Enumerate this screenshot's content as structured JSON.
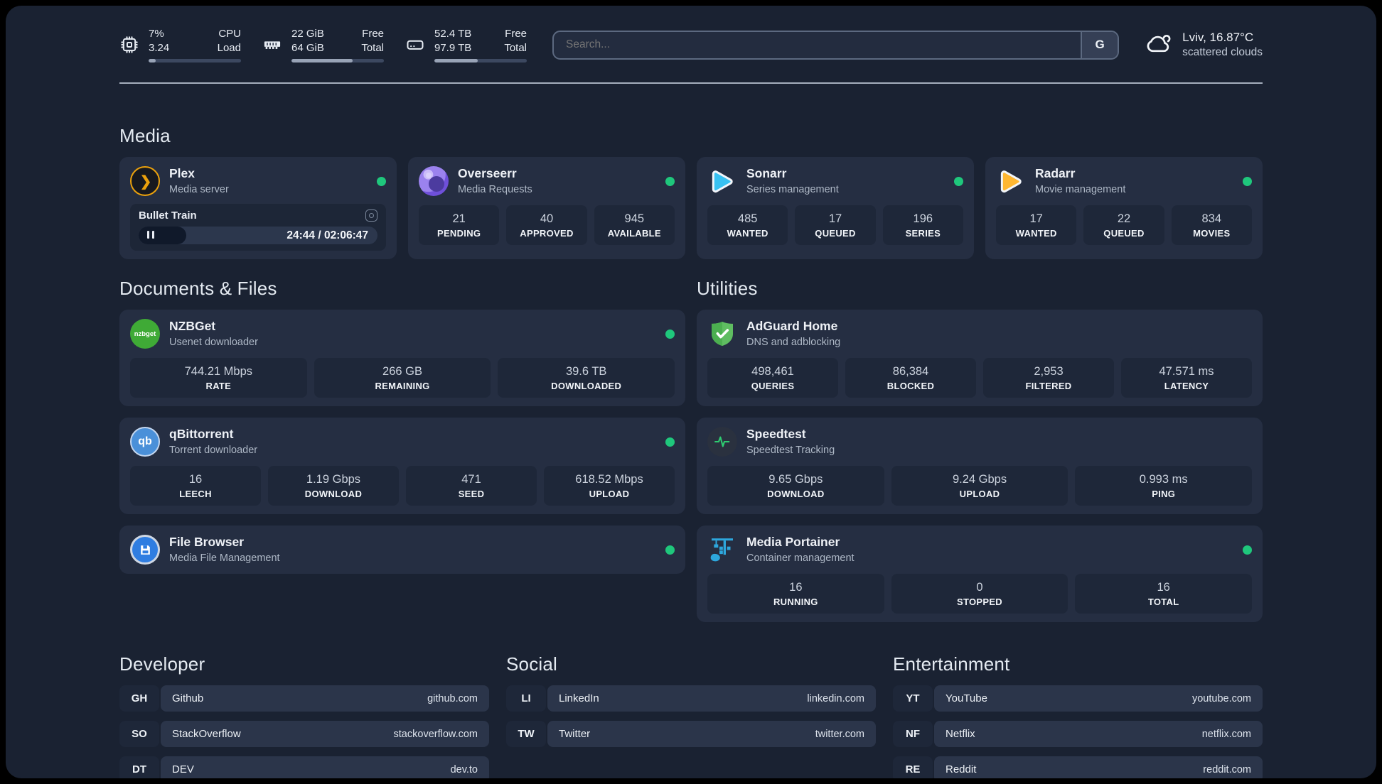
{
  "colors": {
    "status_online": "#1fc77c"
  },
  "header": {
    "stats": [
      {
        "id": "cpu",
        "values": [
          "7%",
          "3.24"
        ],
        "labels": [
          "CPU",
          "Load"
        ],
        "progress_pct": 8
      },
      {
        "id": "memory",
        "values": [
          "22 GiB",
          "64 GiB"
        ],
        "labels": [
          "Free",
          "Total"
        ],
        "progress_pct": 66
      },
      {
        "id": "storage",
        "values": [
          "52.4 TB",
          "97.9 TB"
        ],
        "labels": [
          "Free",
          "Total"
        ],
        "progress_pct": 47
      }
    ],
    "search": {
      "placeholder": "Search...",
      "button_label": "G"
    },
    "weather": {
      "location": "Lviv, 16.87°C",
      "condition": "scattered clouds"
    }
  },
  "media": {
    "title": "Media",
    "plex": {
      "name": "Plex",
      "description": "Media server",
      "icon_glyph": "❯",
      "status": "online",
      "now_playing": {
        "title": "Bullet Train",
        "time_display": "24:44 / 02:06:47",
        "progress_pct": 20
      }
    },
    "overseerr": {
      "name": "Overseerr",
      "description": "Media Requests",
      "status": "online",
      "stats": [
        {
          "value": "21",
          "label": "PENDING"
        },
        {
          "value": "40",
          "label": "APPROVED"
        },
        {
          "value": "945",
          "label": "AVAILABLE"
        }
      ]
    },
    "sonarr": {
      "name": "Sonarr",
      "description": "Series management",
      "status": "online",
      "stats": [
        {
          "value": "485",
          "label": "WANTED"
        },
        {
          "value": "17",
          "label": "QUEUED"
        },
        {
          "value": "196",
          "label": "SERIES"
        }
      ]
    },
    "radarr": {
      "name": "Radarr",
      "description": "Movie management",
      "status": "online",
      "stats": [
        {
          "value": "17",
          "label": "WANTED"
        },
        {
          "value": "22",
          "label": "QUEUED"
        },
        {
          "value": "834",
          "label": "MOVIES"
        }
      ]
    }
  },
  "documents": {
    "title": "Documents & Files",
    "nzbget": {
      "name": "NZBGet",
      "description": "Usenet downloader",
      "icon_text": "nzbget",
      "status": "online",
      "stats": [
        {
          "value": "744.21 Mbps",
          "label": "RATE"
        },
        {
          "value": "266 GB",
          "label": "REMAINING"
        },
        {
          "value": "39.6 TB",
          "label": "DOWNLOADED"
        }
      ]
    },
    "qbittorrent": {
      "name": "qBittorrent",
      "description": "Torrent downloader",
      "icon_text": "qb",
      "status": "online",
      "stats": [
        {
          "value": "16",
          "label": "LEECH"
        },
        {
          "value": "1.19 Gbps",
          "label": "DOWNLOAD"
        },
        {
          "value": "471",
          "label": "SEED"
        },
        {
          "value": "618.52 Mbps",
          "label": "UPLOAD"
        }
      ]
    },
    "filebrowser": {
      "name": "File Browser",
      "description": "Media File Management",
      "status": "online"
    }
  },
  "utilities": {
    "title": "Utilities",
    "adguard": {
      "name": "AdGuard Home",
      "description": "DNS and adblocking",
      "stats": [
        {
          "value": "498,461",
          "label": "QUERIES"
        },
        {
          "value": "86,384",
          "label": "BLOCKED"
        },
        {
          "value": "2,953",
          "label": "FILTERED"
        },
        {
          "value": "47.571 ms",
          "label": "LATENCY"
        }
      ]
    },
    "speedtest": {
      "name": "Speedtest",
      "description": "Speedtest Tracking",
      "stats": [
        {
          "value": "9.65 Gbps",
          "label": "DOWNLOAD"
        },
        {
          "value": "9.24 Gbps",
          "label": "UPLOAD"
        },
        {
          "value": "0.993 ms",
          "label": "PING"
        }
      ]
    },
    "portainer": {
      "name": "Media Portainer",
      "description": "Container management",
      "status": "online",
      "stats": [
        {
          "value": "16",
          "label": "RUNNING"
        },
        {
          "value": "0",
          "label": "STOPPED"
        },
        {
          "value": "16",
          "label": "TOTAL"
        }
      ]
    }
  },
  "bookmarks": {
    "developer": {
      "title": "Developer",
      "links": [
        {
          "abbr": "GH",
          "name": "Github",
          "url": "github.com"
        },
        {
          "abbr": "SO",
          "name": "StackOverflow",
          "url": "stackoverflow.com"
        },
        {
          "abbr": "DT",
          "name": "DEV",
          "url": "dev.to"
        }
      ]
    },
    "social": {
      "title": "Social",
      "links": [
        {
          "abbr": "LI",
          "name": "LinkedIn",
          "url": "linkedin.com"
        },
        {
          "abbr": "TW",
          "name": "Twitter",
          "url": "twitter.com"
        }
      ]
    },
    "entertainment": {
      "title": "Entertainment",
      "links": [
        {
          "abbr": "YT",
          "name": "YouTube",
          "url": "youtube.com"
        },
        {
          "abbr": "NF",
          "name": "Netflix",
          "url": "netflix.com"
        },
        {
          "abbr": "RE",
          "name": "Reddit",
          "url": "reddit.com"
        }
      ]
    }
  }
}
